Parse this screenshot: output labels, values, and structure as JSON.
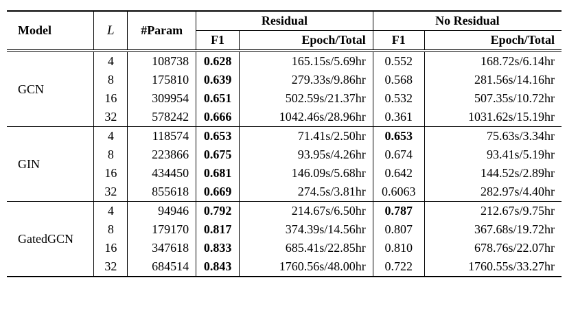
{
  "table": {
    "header": {
      "model": "Model",
      "layers": "L",
      "param": "#Param",
      "residual": "Residual",
      "no_residual": "No Residual",
      "f1": "F1",
      "epoch_total": "Epoch/Total"
    },
    "groups": [
      {
        "model": "GCN",
        "rows": [
          {
            "l": "4",
            "param": "108738",
            "res_f1": "0.628",
            "res_f1_bold": true,
            "res_epoch": "165.15s/5.69hr",
            "nores_f1": "0.552",
            "nores_f1_bold": false,
            "nores_epoch": "168.72s/6.14hr"
          },
          {
            "l": "8",
            "param": "175810",
            "res_f1": "0.639",
            "res_f1_bold": true,
            "res_epoch": "279.33s/9.86hr",
            "nores_f1": "0.568",
            "nores_f1_bold": false,
            "nores_epoch": "281.56s/14.16hr"
          },
          {
            "l": "16",
            "param": "309954",
            "res_f1": "0.651",
            "res_f1_bold": true,
            "res_epoch": "502.59s/21.37hr",
            "nores_f1": "0.532",
            "nores_f1_bold": false,
            "nores_epoch": "507.35s/10.72hr"
          },
          {
            "l": "32",
            "param": "578242",
            "res_f1": "0.666",
            "res_f1_bold": true,
            "res_epoch": "1042.46s/28.96hr",
            "nores_f1": "0.361",
            "nores_f1_bold": false,
            "nores_epoch": "1031.62s/15.19hr"
          }
        ]
      },
      {
        "model": "GIN",
        "rows": [
          {
            "l": "4",
            "param": "118574",
            "res_f1": "0.653",
            "res_f1_bold": true,
            "res_epoch": "71.41s/2.50hr",
            "nores_f1": "0.653",
            "nores_f1_bold": true,
            "nores_epoch": "75.63s/3.34hr"
          },
          {
            "l": "8",
            "param": "223866",
            "res_f1": "0.675",
            "res_f1_bold": true,
            "res_epoch": "93.95s/4.26hr",
            "nores_f1": "0.674",
            "nores_f1_bold": false,
            "nores_epoch": "93.41s/5.19hr"
          },
          {
            "l": "16",
            "param": "434450",
            "res_f1": "0.681",
            "res_f1_bold": true,
            "res_epoch": "146.09s/5.68hr",
            "nores_f1": "0.642",
            "nores_f1_bold": false,
            "nores_epoch": "144.52s/2.89hr"
          },
          {
            "l": "32",
            "param": "855618",
            "res_f1": "0.669",
            "res_f1_bold": true,
            "res_epoch": "274.5s/3.81hr",
            "nores_f1": "0.6063",
            "nores_f1_bold": false,
            "nores_epoch": "282.97s/4.40hr"
          }
        ]
      },
      {
        "model": "GatedGCN",
        "rows": [
          {
            "l": "4",
            "param": "94946",
            "res_f1": "0.792",
            "res_f1_bold": true,
            "res_epoch": "214.67s/6.50hr",
            "nores_f1": "0.787",
            "nores_f1_bold": true,
            "nores_epoch": "212.67s/9.75hr"
          },
          {
            "l": "8",
            "param": "179170",
            "res_f1": "0.817",
            "res_f1_bold": true,
            "res_epoch": "374.39s/14.56hr",
            "nores_f1": "0.807",
            "nores_f1_bold": false,
            "nores_epoch": "367.68s/19.72hr"
          },
          {
            "l": "16",
            "param": "347618",
            "res_f1": "0.833",
            "res_f1_bold": true,
            "res_epoch": "685.41s/22.85hr",
            "nores_f1": "0.810",
            "nores_f1_bold": false,
            "nores_epoch": "678.76s/22.07hr"
          },
          {
            "l": "32",
            "param": "684514",
            "res_f1": "0.843",
            "res_f1_bold": true,
            "res_epoch": "1760.56s/48.00hr",
            "nores_f1": "0.722",
            "nores_f1_bold": false,
            "nores_epoch": "1760.55s/33.27hr"
          }
        ]
      }
    ]
  }
}
